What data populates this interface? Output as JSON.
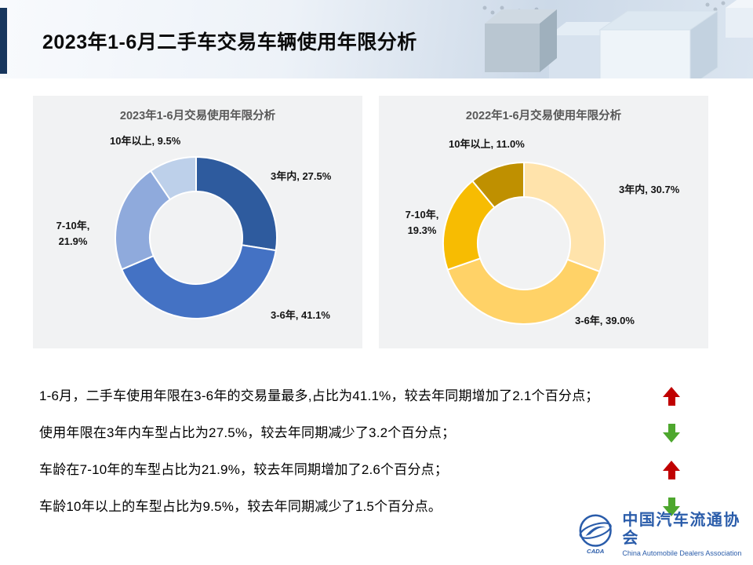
{
  "slide": {
    "title": "2023年1-6月二手车交易车辆使用年限分析"
  },
  "chart_data": [
    {
      "type": "pie",
      "subtype": "donut",
      "title": "2023年1-6月交易使用年限分析",
      "categories": [
        "3年内",
        "3-6年",
        "7-10年",
        "10年以上"
      ],
      "values": [
        27.5,
        41.1,
        21.9,
        9.5
      ],
      "unit": "%",
      "start_angle_deg": 0,
      "direction": "clockwise",
      "colors": [
        "#2e5b9e",
        "#4472c4",
        "#8faadc",
        "#bdd0ea"
      ],
      "point_labels": {
        "top": "10年以上, 9.5%",
        "right": "3年内, 27.5%",
        "bottom": "3-6年, 41.1%",
        "left": "7-10年,\n21.9%"
      }
    },
    {
      "type": "pie",
      "subtype": "donut",
      "title": "2022年1-6月交易使用年限分析",
      "categories": [
        "3年内",
        "3-6年",
        "7-10年",
        "10年以上"
      ],
      "values": [
        30.7,
        39.0,
        19.3,
        11.0
      ],
      "unit": "%",
      "start_angle_deg": 0,
      "direction": "clockwise",
      "colors": [
        "#ffe3ab",
        "#ffd267",
        "#f7bc02",
        "#bf9000"
      ],
      "point_labels": {
        "top": "10年以上, 11.0%",
        "right": "3年内, 30.7%",
        "bottom": "3-6年, 39.0%",
        "left": "7-10年,\n19.3%"
      }
    }
  ],
  "bullets": [
    {
      "text": "1-6月，二手车使用年限在3-6年的交易量最多,占比为41.1%，较去年同期增加了2.1个百分点；",
      "trend": "up"
    },
    {
      "text": "使用年限在3年内车型占比为27.5%，较去年同期减少了3.2个百分点；",
      "trend": "down"
    },
    {
      "text": "车龄在7-10年的车型占比为21.9%，较去年同期增加了2.6个百分点；",
      "trend": "up"
    },
    {
      "text": "车龄10年以上的车型占比为9.5%，较去年同期减少了1.5个百分点。",
      "trend": "down"
    }
  ],
  "footer": {
    "org_cn": "中国汽车流通协会",
    "org_en": "China Automobile Dealers Association",
    "logo_acronym": "CADA"
  },
  "colors": {
    "up_arrow": "#c00000",
    "down_arrow": "#4ea72e",
    "accent_bar": "#17365d",
    "brand": "#2a5caa"
  }
}
